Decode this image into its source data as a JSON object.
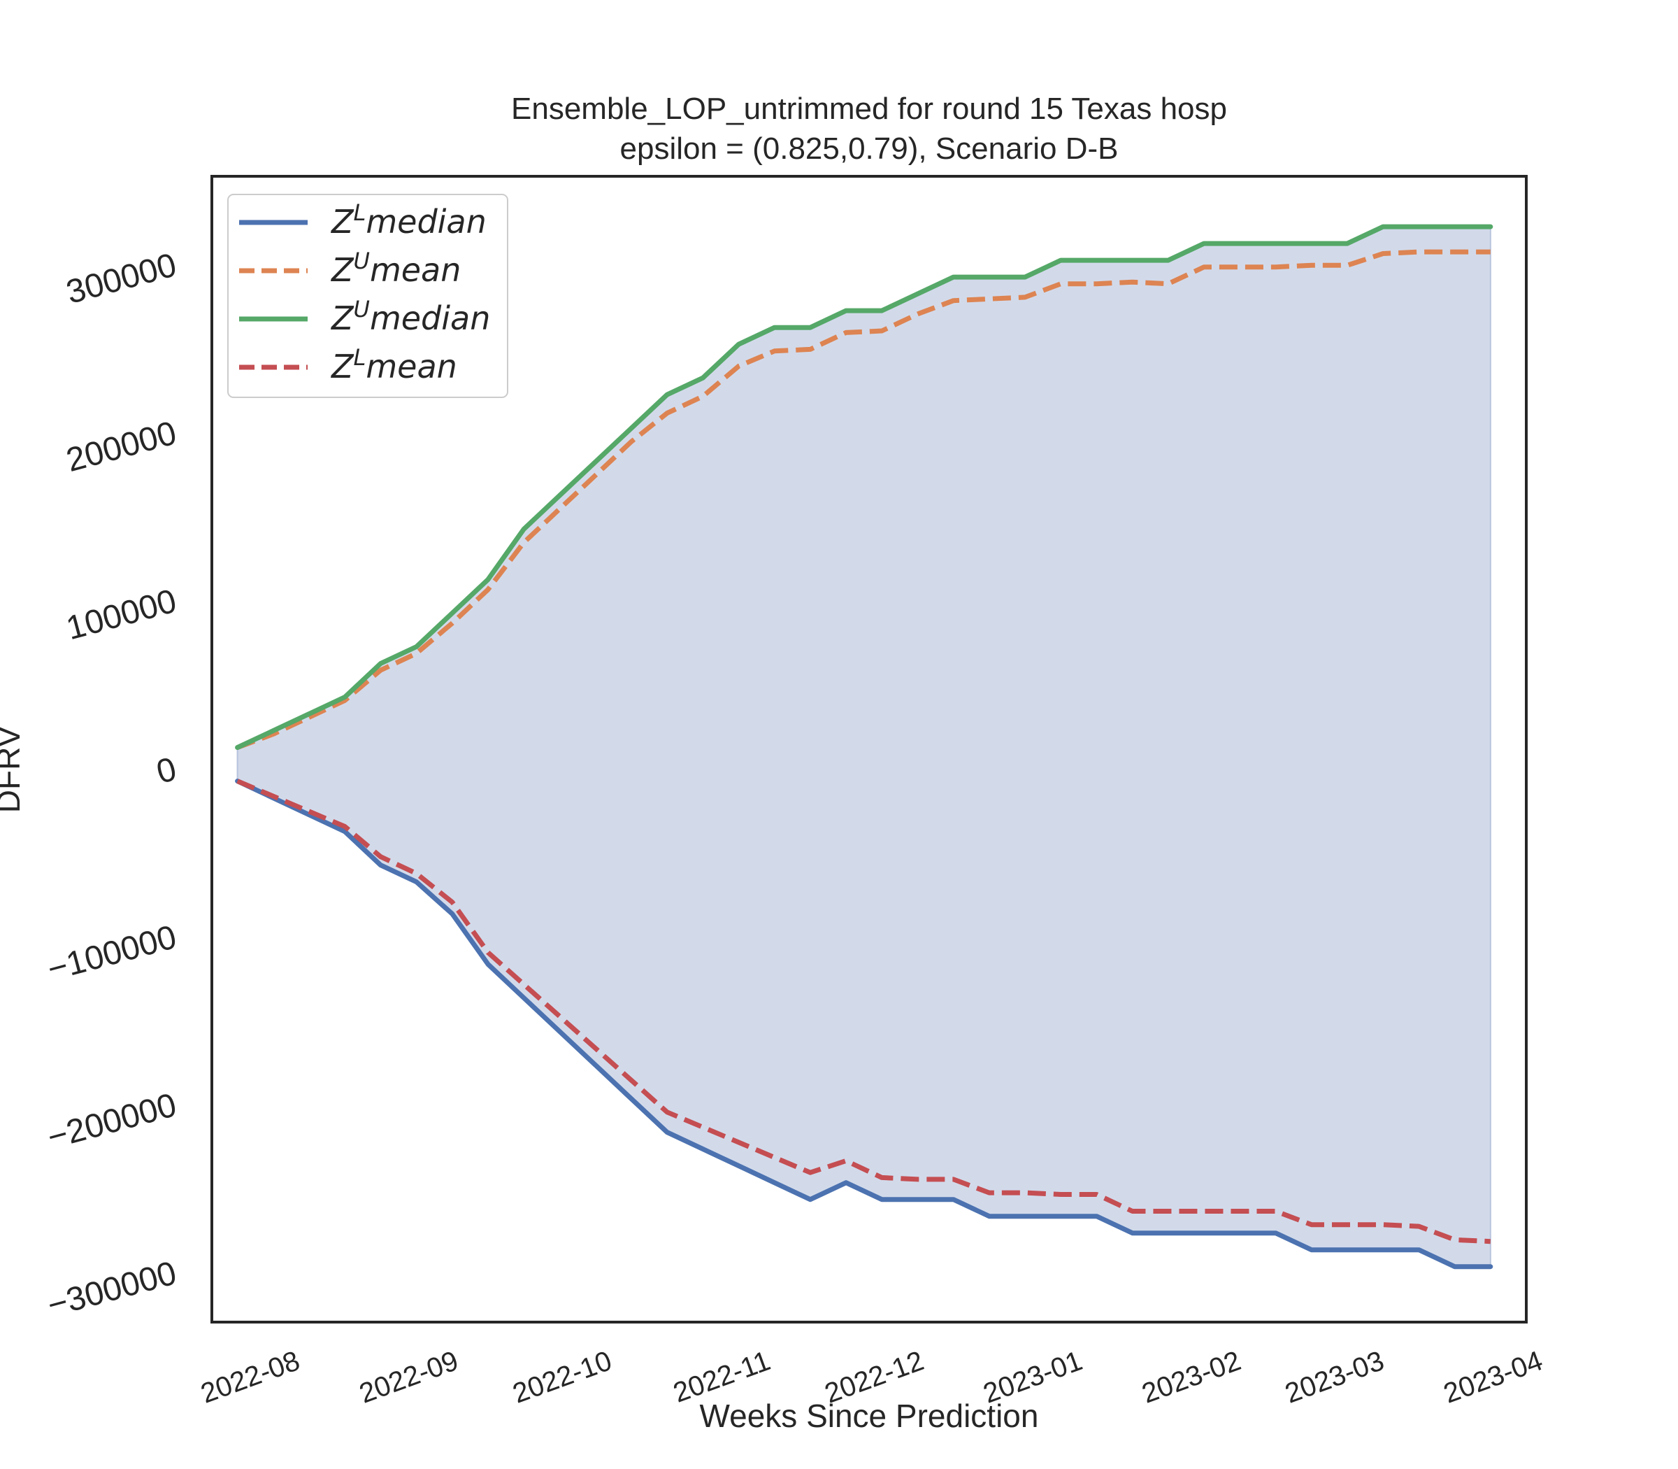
{
  "chart_data": {
    "type": "line",
    "title": "Ensemble_LOP_untrimmed for round 15 Texas  hosp",
    "subtitle": "epsilon = (0.825,0.79), Scenario D-B",
    "xlabel": "Weeks Since Prediction",
    "ylabel": "DFRV",
    "ylim": [
      -330000,
      352000
    ],
    "x_range": [
      "2022-07-18",
      "2023-04-01"
    ],
    "x_ticks": [
      "2022-08",
      "2022-09",
      "2022-10",
      "2022-11",
      "2022-12",
      "2023-01",
      "2023-02",
      "2023-03",
      "2023-04"
    ],
    "y_ticks": [
      {
        "value": 300000,
        "label": "300000"
      },
      {
        "value": 200000,
        "label": "200000"
      },
      {
        "value": 100000,
        "label": "100000"
      },
      {
        "value": 0,
        "label": "0"
      },
      {
        "value": -100000,
        "label": "−100000"
      },
      {
        "value": -200000,
        "label": "−200000"
      },
      {
        "value": -300000,
        "label": "−300000"
      }
    ],
    "grid": false,
    "legend_position": "top-left",
    "fill_between": {
      "upper": "Z^U median",
      "lower": "Z^L median",
      "color": "#d2daea"
    },
    "x": [
      "2022-07-23",
      "2022-07-30",
      "2022-08-06",
      "2022-08-13",
      "2022-08-20",
      "2022-08-27",
      "2022-09-03",
      "2022-09-10",
      "2022-09-17",
      "2022-09-24",
      "2022-10-01",
      "2022-10-08",
      "2022-10-15",
      "2022-10-22",
      "2022-10-29",
      "2022-11-05",
      "2022-11-12",
      "2022-11-19",
      "2022-11-26",
      "2022-12-03",
      "2022-12-10",
      "2022-12-17",
      "2022-12-24",
      "2022-12-31",
      "2023-01-07",
      "2023-01-14",
      "2023-01-21",
      "2023-01-28",
      "2023-02-04",
      "2023-02-11",
      "2023-02-18",
      "2023-02-25",
      "2023-03-04",
      "2023-03-11",
      "2023-03-18",
      "2023-03-25"
    ],
    "series": [
      {
        "name": "Z^L median",
        "legend_base": "Z",
        "legend_sup": "L",
        "legend_rest": "median",
        "color": "#4c72b0",
        "dash": "solid",
        "values": [
          -8000,
          -18000,
          -28000,
          -38000,
          -58000,
          -68000,
          -87000,
          -117000,
          -137000,
          -157000,
          -177000,
          -197000,
          -217000,
          -227000,
          -237000,
          -247000,
          -257000,
          -247000,
          -257000,
          -257000,
          -257000,
          -267000,
          -267000,
          -267000,
          -267000,
          -277000,
          -277000,
          -277000,
          -277000,
          -277000,
          -287000,
          -287000,
          -287000,
          -287000,
          -297000,
          -297000
        ]
      },
      {
        "name": "Z^U mean",
        "legend_base": "Z",
        "legend_sup": "U",
        "legend_rest": "mean",
        "color": "#dd8452",
        "dash": "dashed",
        "values": [
          12000,
          20000,
          30000,
          40000,
          58000,
          68000,
          86000,
          106000,
          134000,
          154000,
          174000,
          194000,
          211000,
          221000,
          239000,
          248000,
          249000,
          259000,
          260000,
          270000,
          278000,
          279000,
          280000,
          288000,
          288000,
          289000,
          288000,
          298000,
          298000,
          298000,
          299000,
          299000,
          306000,
          307000,
          307000,
          307000
        ]
      },
      {
        "name": "Z^U median",
        "legend_base": "Z",
        "legend_sup": "U",
        "legend_rest": "median",
        "color": "#55a868",
        "dash": "solid",
        "values": [
          12000,
          22000,
          32000,
          42000,
          62000,
          72000,
          92000,
          112000,
          142000,
          162000,
          182000,
          202000,
          222000,
          232000,
          252000,
          262000,
          262000,
          272000,
          272000,
          282000,
          292000,
          292000,
          292000,
          302000,
          302000,
          302000,
          302000,
          312000,
          312000,
          312000,
          312000,
          312000,
          322000,
          322000,
          322000,
          322000
        ]
      },
      {
        "name": "Z^L mean",
        "legend_base": "Z",
        "legend_sup": "L",
        "legend_rest": "mean",
        "color": "#c44e52",
        "dash": "dashed",
        "values": [
          -8000,
          -17000,
          -26000,
          -35000,
          -53000,
          -63000,
          -80000,
          -110000,
          -129000,
          -148000,
          -167000,
          -186000,
          -205000,
          -214000,
          -223000,
          -232000,
          -241000,
          -234000,
          -244000,
          -245000,
          -245000,
          -253000,
          -253000,
          -254000,
          -254000,
          -264000,
          -264000,
          -264000,
          -264000,
          -264000,
          -272000,
          -272000,
          -272000,
          -273000,
          -281000,
          -282000
        ]
      }
    ]
  }
}
